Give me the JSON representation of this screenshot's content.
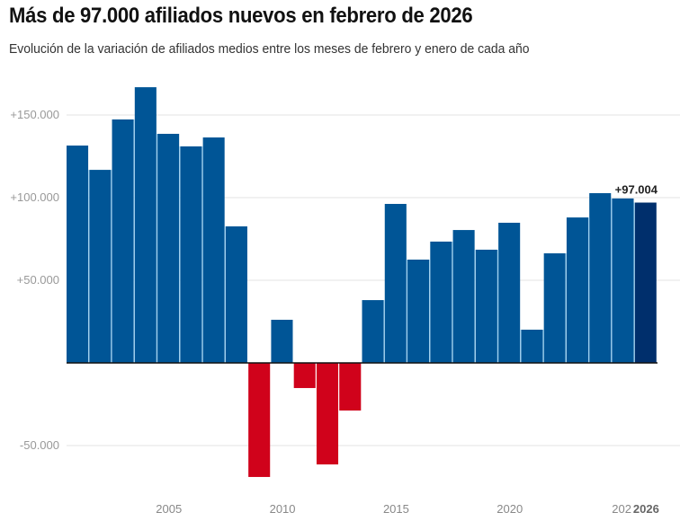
{
  "chart_data": {
    "type": "bar",
    "title": "Más de 97.000 afiliados nuevos en febrero de 2026",
    "subtitle": "Evolución de la variación de afiliados medios entre los meses de febrero y enero de cada año",
    "xlabel": "",
    "ylabel": "",
    "categories": [
      "2001",
      "2002",
      "2003",
      "2004",
      "2005",
      "2006",
      "2007",
      "2008",
      "2009",
      "2010",
      "2011",
      "2012",
      "2013",
      "2014",
      "2015",
      "2016",
      "2017",
      "2018",
      "2019",
      "2020",
      "2021",
      "2022",
      "2023",
      "2024",
      "2025",
      "2026"
    ],
    "values": [
      131500,
      116800,
      147300,
      166800,
      138600,
      131000,
      136400,
      82600,
      -69000,
      26100,
      -15200,
      -61400,
      -28800,
      38000,
      96200,
      62500,
      73400,
      80400,
      68500,
      84800,
      20100,
      66300,
      88000,
      102700,
      99500,
      97004
    ],
    "ylim": [
      -70000,
      170000
    ],
    "yticks": [
      {
        "value": 150000,
        "label": "+150.000"
      },
      {
        "value": 100000,
        "label": "+100.000"
      },
      {
        "value": 50000,
        "label": "+50.000"
      },
      {
        "value": -50000,
        "label": "-50.000"
      }
    ],
    "xticks": [
      {
        "category": "2005",
        "label": "2005",
        "bold": false
      },
      {
        "category": "2010",
        "label": "2010",
        "bold": false
      },
      {
        "category": "2015",
        "label": "2015",
        "bold": false
      },
      {
        "category": "2020",
        "label": "2020",
        "bold": false
      },
      {
        "category": "2025",
        "label": "202",
        "bold": false
      },
      {
        "category": "2026",
        "label": "2026",
        "bold": true
      }
    ],
    "annotations": [
      {
        "category": "2026",
        "text": "+97.004"
      }
    ],
    "highlight_category": "2026",
    "grid": true,
    "legend": "none",
    "colors": {
      "positive": "#005596",
      "negative": "#d0021b",
      "highlight": "#002f6c",
      "separator": "#9ed0f0",
      "grid": "#e3e3e3",
      "zero_line": "#111111"
    }
  }
}
